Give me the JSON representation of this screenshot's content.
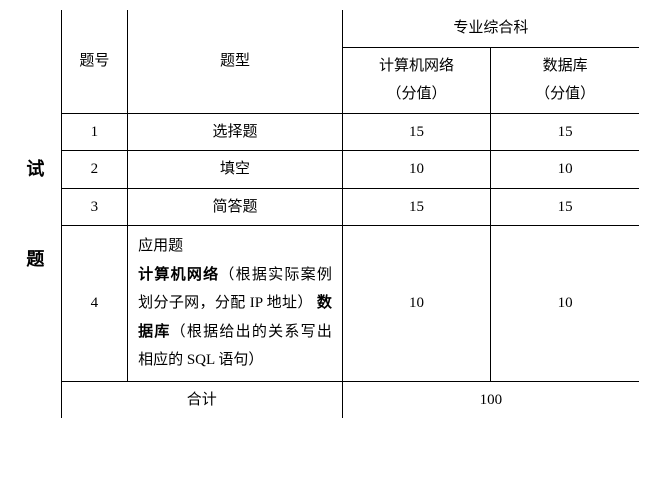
{
  "side_label_line1": "试",
  "side_label_line2": "题",
  "header": {
    "num": "题号",
    "type": "题型",
    "group": "专业综合科",
    "sub1_line1": "计算机网络",
    "sub1_line2": "（分值）",
    "sub2_line1": "数据库",
    "sub2_line2": "（分值）"
  },
  "rows": [
    {
      "num": "1",
      "type": "选择题",
      "s1": "15",
      "s2": "15"
    },
    {
      "num": "2",
      "type": "填空",
      "s1": "10",
      "s2": "10"
    },
    {
      "num": "3",
      "type": "简答题",
      "s1": "15",
      "s2": "15"
    }
  ],
  "row4": {
    "num": "4",
    "title": "应用题",
    "seg1_bold": "计算机网络",
    "seg1_rest": "（根据实际案例划分子网，分配 IP 地址）",
    "seg2_bold": "数据库",
    "seg2_rest": "（根据给出的关系写出相应的 SQL 语句）",
    "s1": "10",
    "s2": "10"
  },
  "total": {
    "label": "合计",
    "value": "100"
  }
}
